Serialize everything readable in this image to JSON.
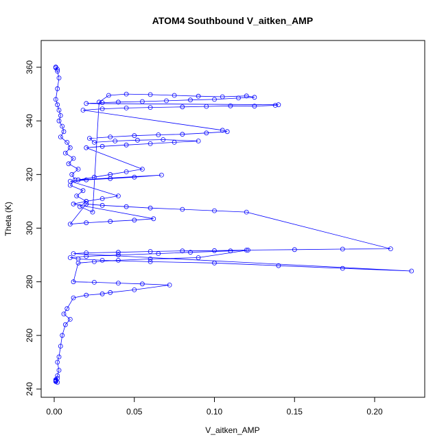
{
  "chart_data": {
    "type": "scatter",
    "title": "ATOM4 Southbound V_aitken_AMP",
    "xlabel": "V_aitken_AMP",
    "ylabel": "Theta (K)",
    "xlim": [
      0.0,
      0.225
    ],
    "ylim": [
      240,
      362
    ],
    "x_ticks": [
      0.0,
      0.05,
      0.1,
      0.15,
      0.2
    ],
    "x_tick_labels": [
      "0.00",
      "0.05",
      "0.10",
      "0.15",
      "0.20"
    ],
    "y_ticks": [
      240,
      260,
      280,
      300,
      320,
      340,
      360
    ],
    "y_tick_labels": [
      "240",
      "260",
      "280",
      "300",
      "320",
      "340",
      "360"
    ],
    "grid": false,
    "legend": "none",
    "style": "points connected by lines (type='o')",
    "series_color": "#0000ff",
    "series": [
      {
        "x": [
          0.001,
          0.002,
          0.001,
          0.002,
          0.003,
          0.002,
          0.001,
          0.002,
          0.003,
          0.004,
          0.003,
          0.005,
          0.006,
          0.004,
          0.008,
          0.01,
          0.007,
          0.012,
          0.009,
          0.015,
          0.011,
          0.013,
          0.01,
          0.018,
          0.014,
          0.02,
          0.016,
          0.024,
          0.028,
          0.034,
          0.045,
          0.06,
          0.075,
          0.09,
          0.105,
          0.12,
          0.125,
          0.115,
          0.1,
          0.085,
          0.07,
          0.055,
          0.04,
          0.03,
          0.02,
          0.14,
          0.138,
          0.125,
          0.11,
          0.095,
          0.08,
          0.06,
          0.045,
          0.03,
          0.018,
          0.105,
          0.108,
          0.095,
          0.08,
          0.065,
          0.05,
          0.035,
          0.022,
          0.025,
          0.038,
          0.052,
          0.068,
          0.09,
          0.075,
          0.06,
          0.045,
          0.03,
          0.02,
          0.055,
          0.045,
          0.035,
          0.025,
          0.015,
          0.067,
          0.05,
          0.035,
          0.02,
          0.01,
          0.04,
          0.03,
          0.02,
          0.012,
          0.062,
          0.05,
          0.035,
          0.02,
          0.01,
          0.02,
          0.03,
          0.045,
          0.06,
          0.08,
          0.1,
          0.12,
          0.21,
          0.18,
          0.15,
          0.12,
          0.1,
          0.08,
          0.06,
          0.04,
          0.02,
          0.012,
          0.223,
          0.18,
          0.14,
          0.1,
          0.06,
          0.03,
          0.015,
          0.01,
          0.02,
          0.04,
          0.065,
          0.085,
          0.11,
          0.121,
          0.09,
          0.06,
          0.04,
          0.025,
          0.015,
          0.012,
          0.025,
          0.04,
          0.055,
          0.072,
          0.05,
          0.035,
          0.03,
          0.02,
          0.012,
          0.008,
          0.006,
          0.01,
          0.007,
          0.005,
          0.004,
          0.003,
          0.002,
          0.003,
          0.002,
          0.001,
          0.002,
          0.001,
          0.002,
          0.001,
          0.001
        ],
        "y": [
          359.8,
          359.2,
          360.1,
          358.5,
          356.0,
          352.0,
          348.0,
          346.0,
          344.0,
          342.0,
          340.0,
          338.0,
          336.0,
          334.0,
          332.0,
          330.0,
          328.0,
          326.0,
          324.0,
          322.0,
          320.0,
          318.0,
          316.0,
          314.0,
          312.0,
          310.0,
          308.0,
          306.0,
          347.0,
          349.5,
          350.0,
          349.8,
          349.5,
          349.2,
          349.0,
          349.3,
          348.8,
          348.5,
          348.0,
          347.8,
          347.5,
          347.2,
          347.0,
          346.8,
          346.5,
          346.0,
          345.8,
          345.5,
          345.6,
          345.4,
          345.2,
          345.0,
          344.8,
          344.5,
          344.0,
          336.5,
          336.0,
          335.5,
          335.0,
          334.8,
          334.5,
          334.0,
          333.5,
          332.0,
          332.5,
          332.8,
          333.0,
          332.5,
          332.0,
          331.5,
          331.0,
          330.5,
          330.0,
          322.0,
          321.0,
          320.0,
          319.0,
          318.0,
          319.8,
          319.0,
          318.5,
          318.0,
          317.5,
          312.0,
          311.0,
          310.0,
          309.0,
          303.5,
          303.0,
          302.5,
          302.0,
          301.5,
          309.0,
          308.5,
          308.0,
          307.5,
          307.0,
          306.5,
          306.0,
          292.3,
          292.2,
          292.0,
          291.8,
          291.6,
          291.5,
          291.3,
          291.0,
          290.8,
          290.5,
          284.0,
          285.0,
          286.0,
          287.0,
          287.5,
          288.0,
          288.5,
          289.0,
          289.5,
          290.0,
          290.5,
          291.0,
          291.5,
          291.8,
          289.0,
          288.5,
          288.0,
          287.5,
          287.0,
          280.0,
          279.8,
          279.5,
          279.2,
          278.8,
          277.0,
          276.0,
          275.5,
          275.0,
          274.0,
          270.0,
          268.0,
          266.0,
          264.0,
          260.0,
          256.0,
          252.0,
          250.0,
          247.0,
          245.0,
          243.0,
          242.5,
          243.5,
          244.0,
          242.8,
          243.2
        ]
      }
    ]
  }
}
